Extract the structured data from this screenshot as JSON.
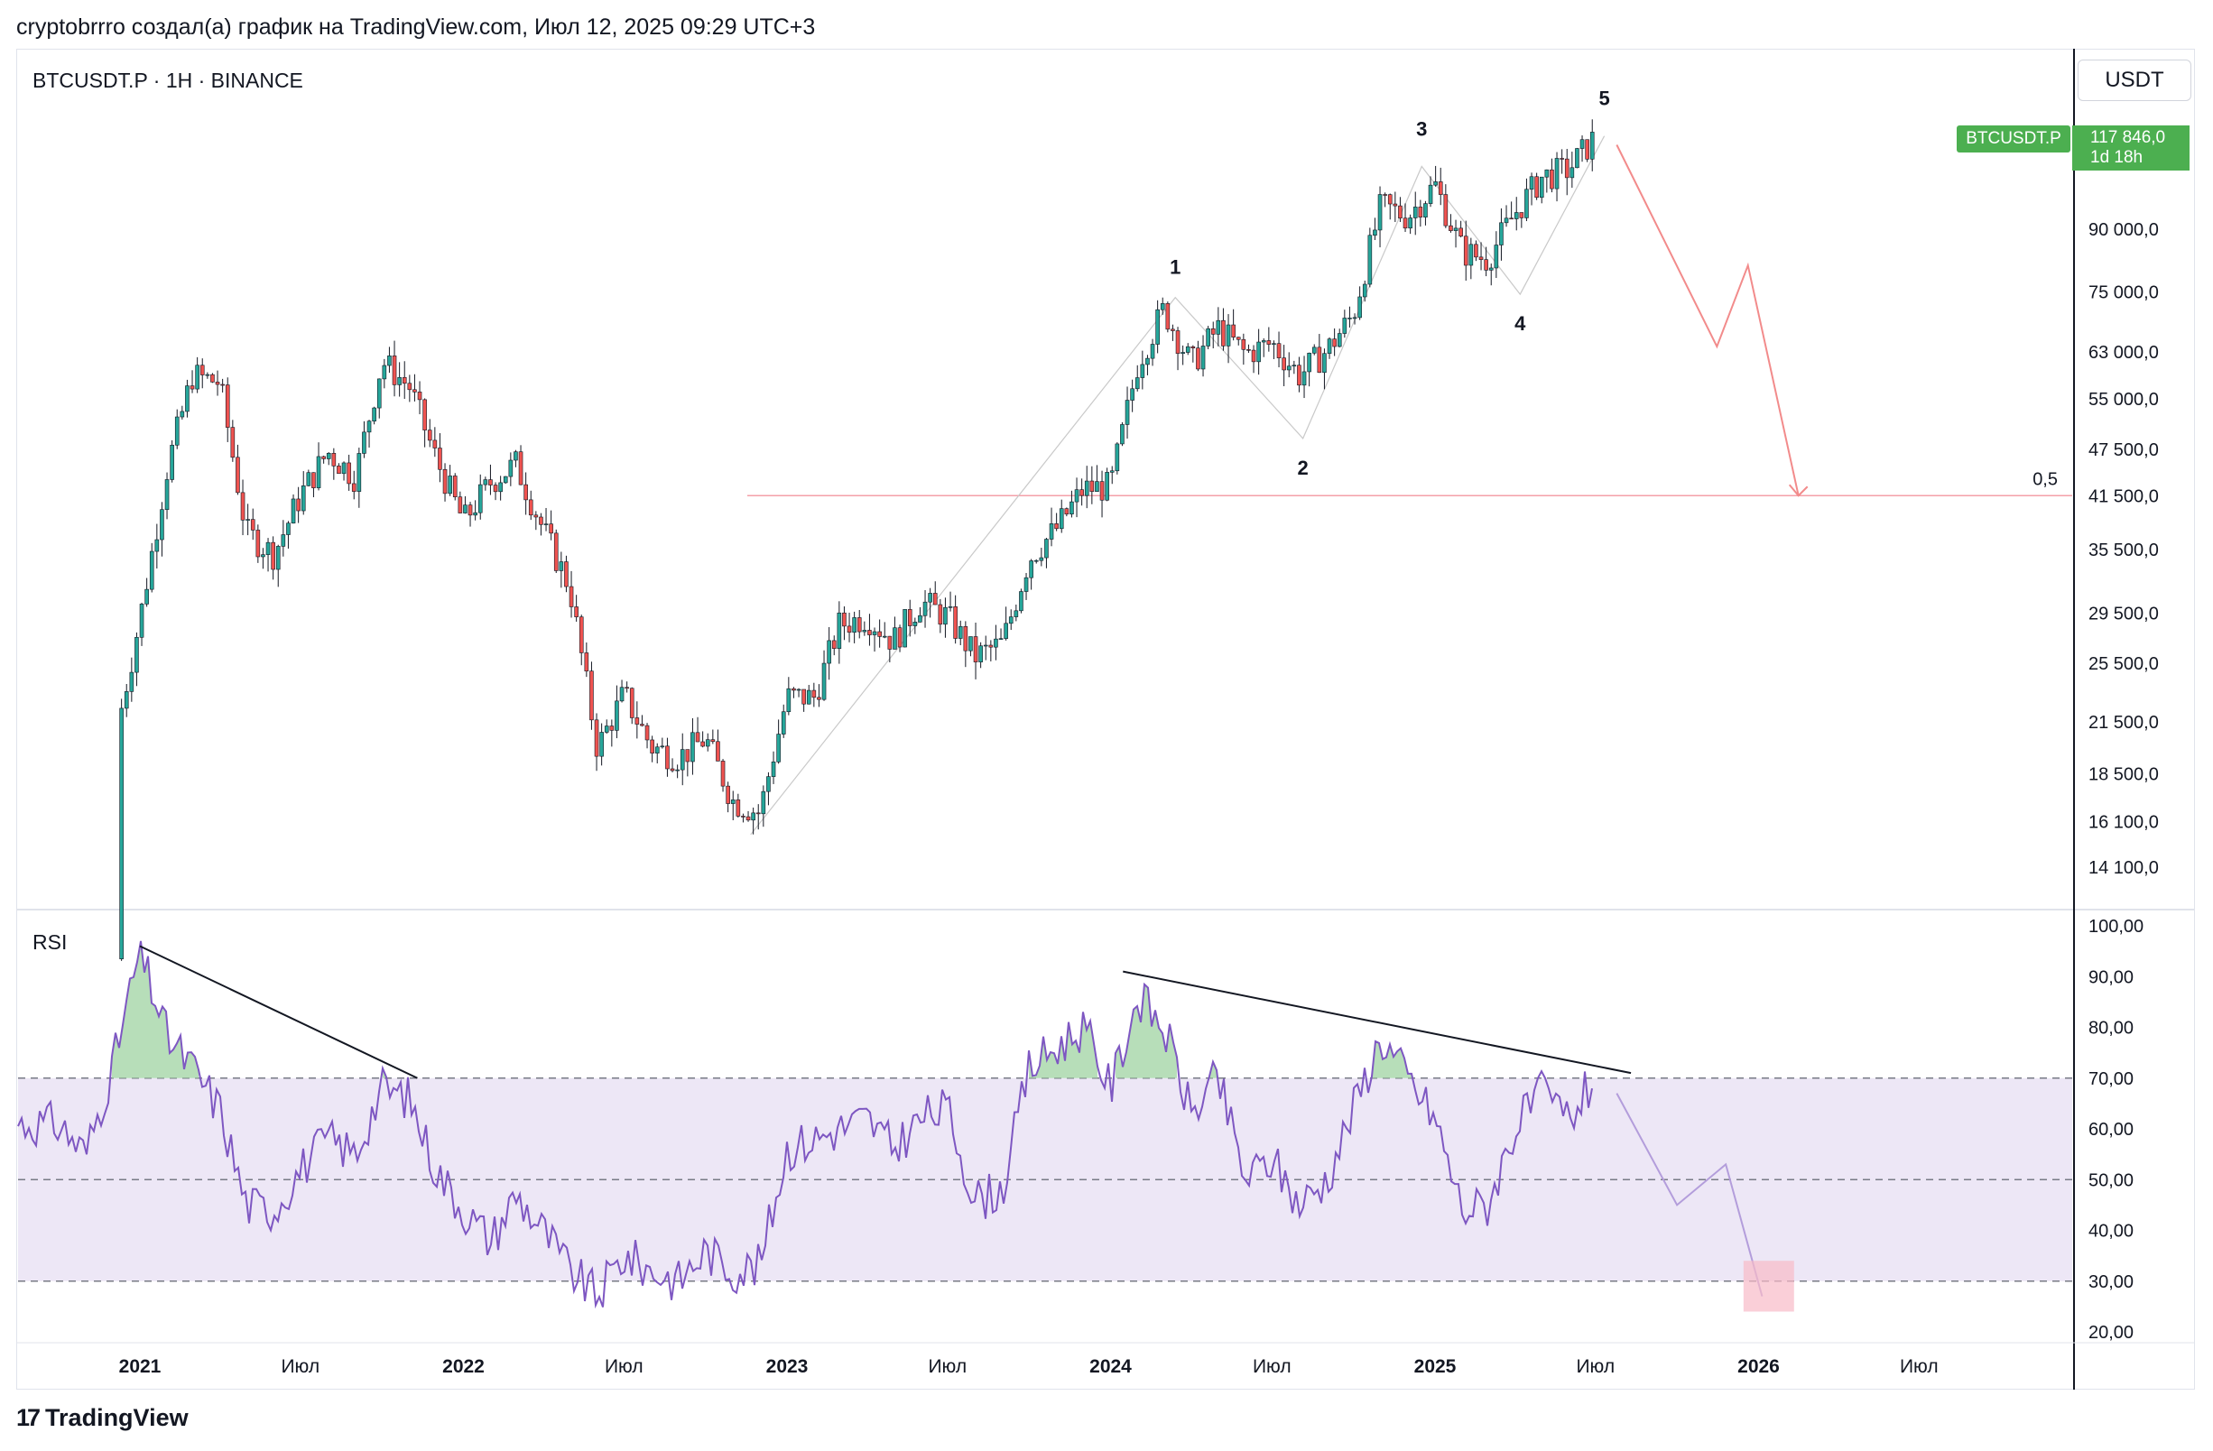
{
  "header": {
    "text": "cryptobrrro создал(а) график на TradingView.com, Июл 12, 2025 09:29 UTC+3"
  },
  "chart_title": "BTCUSDT.P · 1H · BINANCE",
  "currency_button": "USDT",
  "price_badge": {
    "symbol": "BTCUSDT.P",
    "price": "117 846,0",
    "countdown": "1d 18h",
    "color": "#4caf50"
  },
  "footer": {
    "logo_text": "TradingView"
  },
  "colors": {
    "up": "#26a69a",
    "down": "#ef5350",
    "rsi_line": "#7e57c2",
    "rsi_band": "#ede7f6",
    "forecast": "#f28b8b",
    "level": "#f4a0a8"
  },
  "chart_data": [
    {
      "type": "candlestick",
      "title": "BTCUSDT.P · 1H · BINANCE",
      "y_scale": "log",
      "ylim": [
        12000,
        145000
      ],
      "y_ticks": [
        "90 000,0",
        "75 000,0",
        "63 000,0",
        "55 000,0",
        "47 500,0",
        "41 500,0",
        "35 500,0",
        "29 500,0",
        "25 500,0",
        "21 500,0",
        "18 500,0",
        "16 100,0",
        "14 100,0"
      ],
      "y_tick_values": [
        90000,
        75000,
        63000,
        55000,
        47500,
        41500,
        35500,
        29500,
        25500,
        21500,
        18500,
        16100,
        14100
      ],
      "x_labels": [
        "2021",
        "Июл",
        "2022",
        "Июл",
        "2023",
        "Июл",
        "2024",
        "Июл",
        "2025",
        "Июл",
        "2026",
        "Июл"
      ],
      "x_label_dates": [
        "2021-01-01",
        "2021-07-01",
        "2022-01-01",
        "2022-07-01",
        "2023-01-01",
        "2023-07-01",
        "2024-01-01",
        "2024-07-01",
        "2025-01-01",
        "2025-07-01",
        "2026-01-01",
        "2026-07-01"
      ],
      "series": [
        {
          "x": [
            "2020-10-01",
            "2020-11-01",
            "2020-12-01",
            "2021-01-01",
            "2021-02-01",
            "2021-03-01",
            "2021-04-01",
            "2021-05-01",
            "2021-06-01",
            "2021-07-01",
            "2021-08-01",
            "2021-09-01",
            "2021-10-01",
            "2021-11-01",
            "2021-12-01",
            "2022-01-01",
            "2022-02-01",
            "2022-03-01",
            "2022-04-01",
            "2022-05-01",
            "2022-06-01",
            "2022-07-01",
            "2022-08-01",
            "2022-09-01",
            "2022-10-01",
            "2022-11-01",
            "2022-12-01",
            "2023-01-01",
            "2023-02-01",
            "2023-03-01",
            "2023-04-01",
            "2023-05-01",
            "2023-06-01",
            "2023-07-01",
            "2023-08-01",
            "2023-09-01",
            "2023-10-01",
            "2023-11-01",
            "2023-12-01",
            "2024-01-01",
            "2024-02-01",
            "2024-03-01",
            "2024-04-01",
            "2024-05-01",
            "2024-06-01",
            "2024-07-01",
            "2024-08-01",
            "2024-09-01",
            "2024-10-01",
            "2024-11-01",
            "2024-12-01",
            "2025-01-01",
            "2025-02-01",
            "2025-03-01",
            "2025-04-01",
            "2025-05-01",
            "2025-06-01",
            "2025-07-01"
          ],
          "y": [
            10800,
            13800,
            19700,
            29000,
            45000,
            58800,
            57700,
            37300,
            35000,
            41500,
            47100,
            43800,
            61300,
            57000,
            46200,
            38500,
            43200,
            45500,
            37600,
            31800,
            19900,
            23300,
            20000,
            19400,
            20500,
            17100,
            16500,
            23100,
            23100,
            28500,
            29200,
            27200,
            30500,
            29200,
            26000,
            27000,
            34600,
            37700,
            42300,
            42600,
            61200,
            71300,
            60700,
            67500,
            62700,
            64600,
            58900,
            63300,
            70300,
            96400,
            93400,
            102400,
            84300,
            82500,
            94200,
            104600,
            107100,
            117846
          ]
        }
      ]
    },
    {
      "type": "line",
      "title": "RSI",
      "ylim": [
        20,
        100
      ],
      "y_ticks": [
        "100,00",
        "90,00",
        "80,00",
        "70,00",
        "60,00",
        "50,00",
        "40,00",
        "30,00",
        "20,00"
      ],
      "y_tick_values": [
        100,
        90,
        80,
        70,
        60,
        50,
        40,
        30,
        20
      ],
      "bands": [
        30,
        50,
        70
      ],
      "series": [
        {
          "x": [
            "2020-10-01",
            "2020-11-01",
            "2020-12-01",
            "2021-01-01",
            "2021-02-01",
            "2021-03-01",
            "2021-04-01",
            "2021-05-01",
            "2021-06-01",
            "2021-07-01",
            "2021-08-01",
            "2021-09-01",
            "2021-10-01",
            "2021-11-01",
            "2021-12-01",
            "2022-01-01",
            "2022-02-01",
            "2022-03-01",
            "2022-04-01",
            "2022-05-01",
            "2022-06-01",
            "2022-07-01",
            "2022-08-01",
            "2022-09-01",
            "2022-10-01",
            "2022-11-01",
            "2022-12-01",
            "2023-01-01",
            "2023-02-01",
            "2023-03-01",
            "2023-04-01",
            "2023-05-01",
            "2023-06-01",
            "2023-07-01",
            "2023-08-01",
            "2023-09-01",
            "2023-10-01",
            "2023-11-01",
            "2023-12-01",
            "2024-01-01",
            "2024-02-01",
            "2024-03-01",
            "2024-04-01",
            "2024-05-01",
            "2024-06-01",
            "2024-07-01",
            "2024-08-01",
            "2024-09-01",
            "2024-10-01",
            "2024-11-01",
            "2024-12-01",
            "2025-01-01",
            "2025-02-01",
            "2025-03-01",
            "2025-04-01",
            "2025-05-01",
            "2025-06-01",
            "2025-07-01"
          ],
          "y": [
            61,
            55,
            72,
            95,
            78,
            72,
            64,
            45,
            44,
            52,
            58,
            55,
            68,
            66,
            52,
            44,
            38,
            47,
            40,
            32,
            27,
            35,
            32,
            30,
            36,
            32,
            33,
            56,
            58,
            60,
            62,
            56,
            62,
            64,
            46,
            48,
            72,
            76,
            80,
            68,
            86,
            80,
            63,
            70,
            50,
            54,
            45,
            50,
            64,
            78,
            70,
            62,
            44,
            45,
            60,
            67,
            62,
            70
          ]
        }
      ]
    }
  ],
  "annotations": {
    "wave_labels": [
      "1",
      "2",
      "3",
      "4",
      "5"
    ],
    "fib_label": "0,5"
  }
}
